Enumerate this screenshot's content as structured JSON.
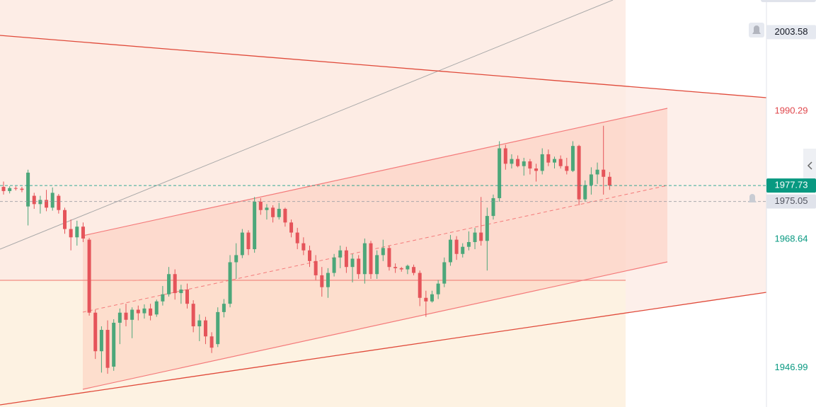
{
  "chart_data": {
    "type": "candlestick",
    "ylim": [
      1940.4,
      2009.0
    ],
    "up_color": "#4ca77a",
    "down_color": "#e5545a",
    "ohlc": [
      [
        1977.5,
        1978.4,
        1976.2,
        1976.8
      ],
      [
        1976.8,
        1977.6,
        1976.4,
        1977.3
      ],
      [
        1977.3,
        1977.6,
        1976.9,
        1977.2
      ],
      [
        1977.2,
        1977.5,
        1976.6,
        1977.0
      ],
      [
        1974.2,
        1980.4,
        1971.0,
        1979.9
      ],
      [
        1976.0,
        1976.5,
        1973.8,
        1974.6
      ],
      [
        1974.6,
        1976.0,
        1973.0,
        1975.3
      ],
      [
        1975.3,
        1977.0,
        1973.4,
        1974.0
      ],
      [
        1974.0,
        1977.4,
        1973.5,
        1976.5
      ],
      [
        1976.0,
        1976.3,
        1973.0,
        1973.6
      ],
      [
        1973.6,
        1974.0,
        1969.6,
        1970.4
      ],
      [
        1970.4,
        1972.0,
        1966.8,
        1969.0
      ],
      [
        1969.0,
        1971.8,
        1967.6,
        1970.8
      ],
      [
        1970.8,
        1971.5,
        1968.2,
        1968.8
      ],
      [
        1968.6,
        1968.9,
        1955.8,
        1956.3
      ],
      [
        1956.3,
        1956.8,
        1948.5,
        1949.8
      ],
      [
        1949.8,
        1954.0,
        1946.2,
        1953.4
      ],
      [
        1953.4,
        1955.0,
        1946.0,
        1947.0
      ],
      [
        1947.2,
        1955.2,
        1946.5,
        1954.6
      ],
      [
        1954.6,
        1957.0,
        1951.0,
        1956.3
      ],
      [
        1956.3,
        1957.8,
        1954.0,
        1955.1
      ],
      [
        1955.1,
        1957.2,
        1952.0,
        1956.8
      ],
      [
        1956.8,
        1957.5,
        1955.0,
        1956.2
      ],
      [
        1956.2,
        1957.7,
        1955.3,
        1957.0
      ],
      [
        1957.0,
        1957.8,
        1955.0,
        1955.8
      ],
      [
        1956.0,
        1958.5,
        1955.6,
        1958.2
      ],
      [
        1958.2,
        1960.8,
        1957.5,
        1959.4
      ],
      [
        1959.4,
        1964.0,
        1959.0,
        1962.8
      ],
      [
        1962.8,
        1963.6,
        1958.5,
        1959.6
      ],
      [
        1959.6,
        1961.0,
        1957.8,
        1960.2
      ],
      [
        1960.2,
        1961.2,
        1957.0,
        1957.8
      ],
      [
        1957.8,
        1958.4,
        1953.0,
        1954.0
      ],
      [
        1954.0,
        1956.0,
        1951.5,
        1955.0
      ],
      [
        1955.0,
        1955.6,
        1951.0,
        1952.3
      ],
      [
        1952.3,
        1953.0,
        1949.5,
        1950.4
      ],
      [
        1951.0,
        1957.2,
        1950.5,
        1956.4
      ],
      [
        1956.4,
        1958.6,
        1955.5,
        1957.8
      ],
      [
        1957.8,
        1966.0,
        1957.2,
        1964.8
      ],
      [
        1964.8,
        1968.0,
        1962.0,
        1966.0
      ],
      [
        1966.0,
        1970.4,
        1965.5,
        1969.8
      ],
      [
        1969.8,
        1970.2,
        1966.0,
        1967.0
      ],
      [
        1967.0,
        1975.8,
        1966.4,
        1975.0
      ],
      [
        1975.0,
        1975.6,
        1972.8,
        1973.6
      ],
      [
        1973.6,
        1974.6,
        1972.0,
        1974.0
      ],
      [
        1974.0,
        1974.4,
        1971.5,
        1972.4
      ],
      [
        1972.4,
        1974.8,
        1972.0,
        1973.8
      ],
      [
        1973.8,
        1974.0,
        1970.8,
        1971.5
      ],
      [
        1971.5,
        1972.0,
        1969.0,
        1969.8
      ],
      [
        1969.8,
        1970.6,
        1967.0,
        1968.0
      ],
      [
        1968.0,
        1969.0,
        1966.0,
        1966.8
      ],
      [
        1966.8,
        1967.6,
        1964.0,
        1965.0
      ],
      [
        1965.0,
        1966.0,
        1961.8,
        1962.6
      ],
      [
        1962.6,
        1964.0,
        1959.0,
        1960.6
      ],
      [
        1960.6,
        1963.8,
        1958.8,
        1963.0
      ],
      [
        1963.0,
        1966.2,
        1962.4,
        1965.6
      ],
      [
        1965.6,
        1967.6,
        1963.8,
        1966.8
      ],
      [
        1966.8,
        1967.4,
        1963.0,
        1964.0
      ],
      [
        1964.0,
        1966.2,
        1961.4,
        1965.4
      ],
      [
        1965.4,
        1966.0,
        1962.0,
        1962.8
      ],
      [
        1962.8,
        1968.8,
        1961.2,
        1968.0
      ],
      [
        1968.0,
        1968.4,
        1962.0,
        1962.8
      ],
      [
        1962.8,
        1966.8,
        1962.0,
        1966.0
      ],
      [
        1966.0,
        1968.6,
        1965.0,
        1967.2
      ],
      [
        1967.2,
        1967.6,
        1963.4,
        1964.0
      ],
      [
        1964.0,
        1964.6,
        1963.0,
        1963.8
      ],
      [
        1963.8,
        1964.0,
        1963.2,
        1963.6
      ],
      [
        1963.6,
        1964.4,
        1962.8,
        1964.2
      ],
      [
        1964.0,
        1964.4,
        1962.6,
        1963.0
      ],
      [
        1963.0,
        1963.4,
        1957.4,
        1958.8
      ],
      [
        1958.8,
        1960.0,
        1955.6,
        1958.2
      ],
      [
        1958.2,
        1960.0,
        1958.0,
        1959.4
      ],
      [
        1959.4,
        1961.8,
        1958.6,
        1961.2
      ],
      [
        1961.2,
        1965.6,
        1960.6,
        1964.8
      ],
      [
        1964.8,
        1969.4,
        1964.2,
        1968.6
      ],
      [
        1968.6,
        1969.2,
        1965.2,
        1966.2
      ],
      [
        1966.2,
        1968.0,
        1965.6,
        1967.4
      ],
      [
        1967.4,
        1970.0,
        1966.8,
        1968.2
      ],
      [
        1968.2,
        1970.6,
        1967.0,
        1969.8
      ],
      [
        1969.8,
        1975.8,
        1967.6,
        1968.4
      ],
      [
        1968.4,
        1974.0,
        1963.4,
        1972.6
      ],
      [
        1972.6,
        1976.2,
        1972.0,
        1975.6
      ],
      [
        1975.6,
        1985.2,
        1975.0,
        1984.0
      ],
      [
        1984.0,
        1984.6,
        1980.4,
        1981.4
      ],
      [
        1981.4,
        1983.0,
        1980.6,
        1982.2
      ],
      [
        1982.2,
        1982.8,
        1980.8,
        1981.0
      ],
      [
        1981.0,
        1982.4,
        1979.4,
        1981.8
      ],
      [
        1981.8,
        1982.2,
        1979.6,
        1980.6
      ],
      [
        1980.6,
        1981.4,
        1978.4,
        1980.2
      ],
      [
        1980.2,
        1984.0,
        1979.6,
        1983.0
      ],
      [
        1983.0,
        1983.8,
        1981.0,
        1981.6
      ],
      [
        1981.6,
        1982.6,
        1980.6,
        1982.2
      ],
      [
        1982.2,
        1982.8,
        1980.6,
        1981.0
      ],
      [
        1981.0,
        1982.4,
        1979.6,
        1980.2
      ],
      [
        1980.2,
        1985.2,
        1980.0,
        1984.4
      ],
      [
        1984.4,
        1984.6,
        1974.4,
        1975.4
      ],
      [
        1975.4,
        1978.6,
        1975.0,
        1977.8
      ],
      [
        1977.8,
        1980.8,
        1976.2,
        1979.6
      ],
      [
        1979.6,
        1981.6,
        1978.0,
        1980.4
      ],
      [
        1980.4,
        1987.8,
        1976.2,
        1979.2
      ],
      [
        1979.2,
        1980.0,
        1977.0,
        1977.73
      ]
    ],
    "price_labels": [
      {
        "value": 2003.58,
        "color": "#131722",
        "background": "#e6e9f0"
      },
      {
        "value": 1990.29,
        "color": "#e0474c"
      },
      {
        "value": 1977.73,
        "color": "#ffffff",
        "background": "#089981",
        "line": "#089981"
      },
      {
        "value": 1975.05,
        "color": "#50535e",
        "background": "#e0e3eb",
        "line": "#9598a1"
      },
      {
        "value": 1968.64,
        "color": "#089981"
      },
      {
        "value": 1946.99,
        "color": "#089981"
      }
    ]
  }
}
